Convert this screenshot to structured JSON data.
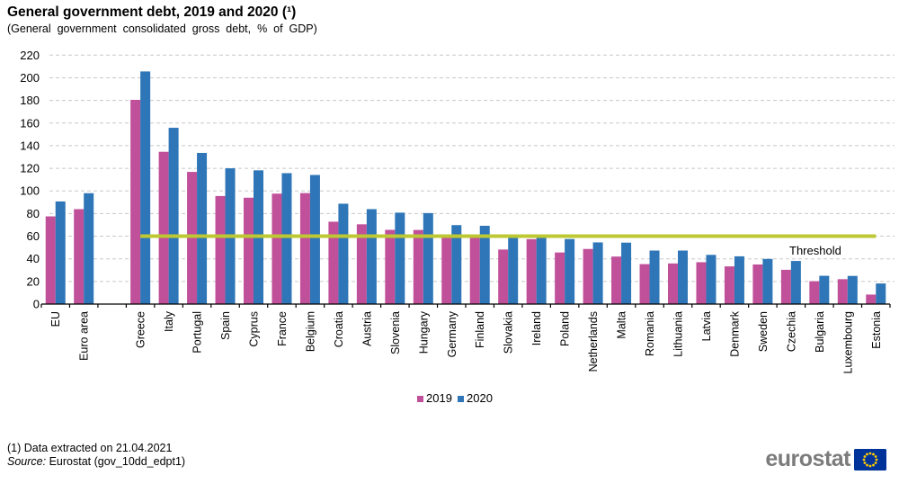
{
  "title": "General government debt, 2019 and 2020 (¹)",
  "subtitle": "(General government consolidated gross debt, % of GDP)",
  "chart_data": {
    "type": "bar",
    "title": "General government debt, 2019 and 2020",
    "ylabel": "% of GDP",
    "ylim": [
      0,
      220
    ],
    "ytick_step": 20,
    "grid": "horizontal dashed",
    "legend_position": "bottom-center",
    "gap_after_category": "Euro area",
    "categories": [
      "EU",
      "Euro area",
      "Greece",
      "Italy",
      "Portugal",
      "Spain",
      "Cyprus",
      "France",
      "Belgium",
      "Croatia",
      "Austria",
      "Slovenia",
      "Hungary",
      "Germany",
      "Finland",
      "Slovakia",
      "Ireland",
      "Poland",
      "Netherlands",
      "Malta",
      "Romania",
      "Lithuania",
      "Latvia",
      "Denmark",
      "Sweden",
      "Czechia",
      "Bulgaria",
      "Luxembourg",
      "Estonia"
    ],
    "series": [
      {
        "name": "2019",
        "color": "#c0509a",
        "values": [
          77.5,
          83.9,
          180.5,
          134.6,
          116.8,
          95.5,
          94.0,
          97.6,
          98.1,
          72.8,
          70.5,
          65.6,
          65.5,
          59.7,
          59.5,
          48.2,
          57.4,
          45.6,
          48.7,
          42.0,
          35.3,
          35.9,
          37.0,
          33.3,
          35.0,
          30.3,
          20.2,
          22.0,
          8.4
        ]
      },
      {
        "name": "2020",
        "color": "#2e76b7",
        "values": [
          90.7,
          98.0,
          205.6,
          155.8,
          133.6,
          120.0,
          118.2,
          115.7,
          114.1,
          88.7,
          83.9,
          80.8,
          80.4,
          69.8,
          69.2,
          60.6,
          59.5,
          57.5,
          54.5,
          54.3,
          47.3,
          47.3,
          43.5,
          42.2,
          39.9,
          38.1,
          25.0,
          24.9,
          18.2
        ]
      }
    ],
    "threshold": {
      "label": "Threshold",
      "value": 60,
      "color": "#bec832",
      "from_category": "Greece",
      "to_category": "Estonia"
    },
    "colors": {
      "gridline": "#c8c8c8",
      "axis": "#000000"
    }
  },
  "legend": {
    "items": [
      {
        "label": "2019"
      },
      {
        "label": "2020"
      }
    ]
  },
  "footer": {
    "note": "(1) Data extracted on 21.04.2021",
    "source_label": "Source:",
    "source_text": "Eurostat (gov_10dd_edpt1)"
  },
  "logo": {
    "text": "eurostat",
    "text_color": "#7b7b7b",
    "flag_blue": "#003399",
    "star_yellow": "#ffcc00"
  }
}
